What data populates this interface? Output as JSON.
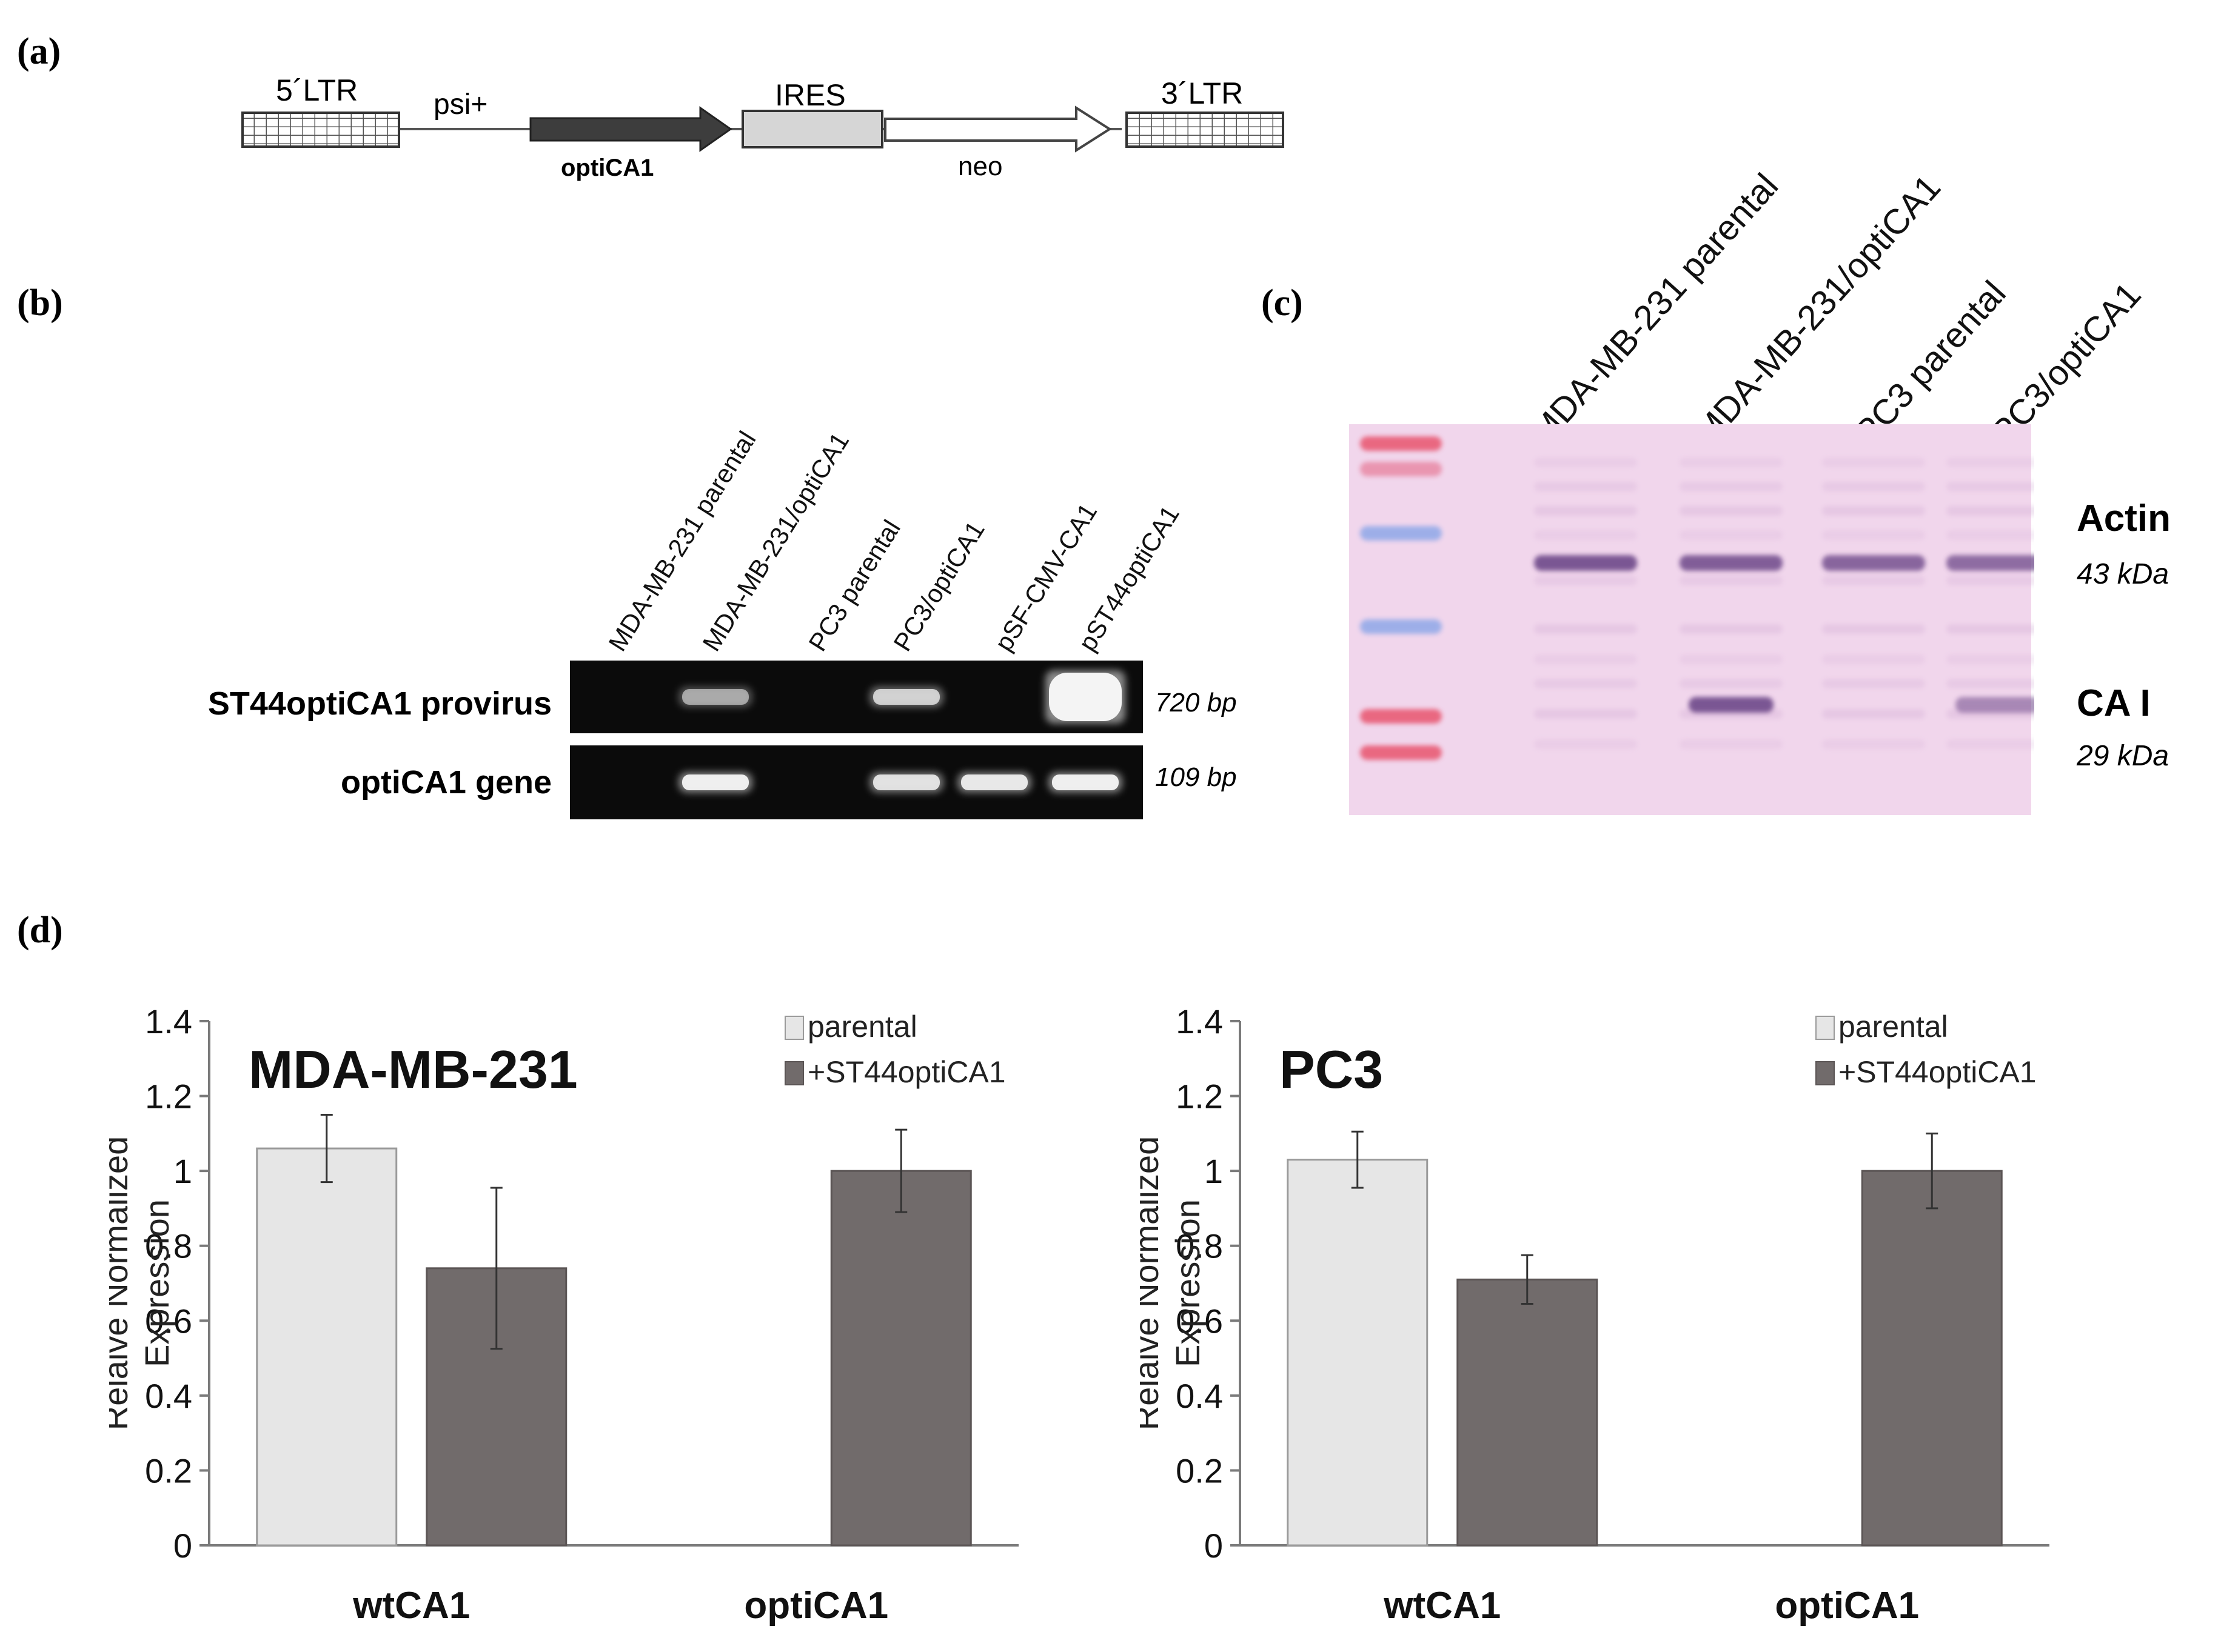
{
  "panels": {
    "a": "(a)",
    "b": "(b)",
    "c": "(c)",
    "d": "(d)"
  },
  "construct": {
    "ltr5": "5´LTR",
    "psi": "psi+",
    "gene": "optiCA1",
    "ires": "IRES",
    "neo": "neo",
    "ltr3": "3´LTR"
  },
  "gel": {
    "lanes": [
      "MDA-MB-231 parental",
      "MDA-MB-231/optiCA1",
      "PC3 parental",
      "PC3/optiCA1",
      "pSF-CMV-CA1",
      "pST44optiCA1"
    ],
    "rows": [
      {
        "label": "ST44optiCA1 provirus",
        "size": "720 bp",
        "band_intensity": [
          0,
          0.55,
          0,
          0.75,
          0,
          1.0
        ]
      },
      {
        "label": "optiCA1 gene",
        "size": "109 bp",
        "band_intensity": [
          0,
          0.95,
          0,
          0.85,
          0.9,
          0.95
        ]
      }
    ],
    "colors": {
      "background": "#0b0b0b",
      "band": "#f4f4f4"
    }
  },
  "western": {
    "lanes": [
      "MDA-MB-231 parental",
      "MDA-MB-231/optiCA1",
      "PC3 parental",
      "PC3/optiCA1"
    ],
    "bands": [
      {
        "name": "Actin",
        "size": "43 kDa",
        "intensity": [
          0.9,
          0.85,
          0.8,
          0.75
        ]
      },
      {
        "name": "CA I",
        "size": "29 kDa",
        "intensity": [
          0,
          0.9,
          0,
          0.55
        ]
      }
    ],
    "colors": {
      "membrane": "#f1d6ec",
      "band": "#6e4a8a",
      "ladder_red": "#e8556e",
      "ladder_blue": "#8fa8e8"
    }
  },
  "chart_data": [
    {
      "type": "bar",
      "title": "MDA-MB-231",
      "ylabel": "Relaive Normalized Expression",
      "categories": [
        "wtCA1",
        "optiCA1"
      ],
      "ylim": [
        0,
        1.4
      ],
      "yticks": [
        "0",
        "0.2",
        "0.4",
        "0.6",
        "0.8",
        "1",
        "1.2",
        "1.4"
      ],
      "legend_position": "top-right",
      "series": [
        {
          "name": "parental",
          "color": "#e6e6e6",
          "values": [
            1.06,
            null
          ],
          "errors": [
            0.09,
            null
          ]
        },
        {
          "name": "+ST44optiCA1",
          "color": "#716b6b",
          "values": [
            0.74,
            1.0
          ],
          "errors": [
            0.215,
            0.11
          ]
        }
      ]
    },
    {
      "type": "bar",
      "title": "PC3",
      "ylabel": "Relaive Normalized Expression",
      "categories": [
        "wtCA1",
        "optiCA1"
      ],
      "ylim": [
        0,
        1.4
      ],
      "yticks": [
        "0",
        "0.2",
        "0.4",
        "0.6",
        "0.8",
        "1",
        "1.2",
        "1.4"
      ],
      "legend_position": "top-right",
      "series": [
        {
          "name": "parental",
          "color": "#e6e6e6",
          "values": [
            1.03,
            null
          ],
          "errors": [
            0.075,
            null
          ]
        },
        {
          "name": "+ST44optiCA1",
          "color": "#716b6b",
          "values": [
            0.71,
            1.0
          ],
          "errors": [
            0.065,
            0.1
          ]
        }
      ]
    }
  ]
}
